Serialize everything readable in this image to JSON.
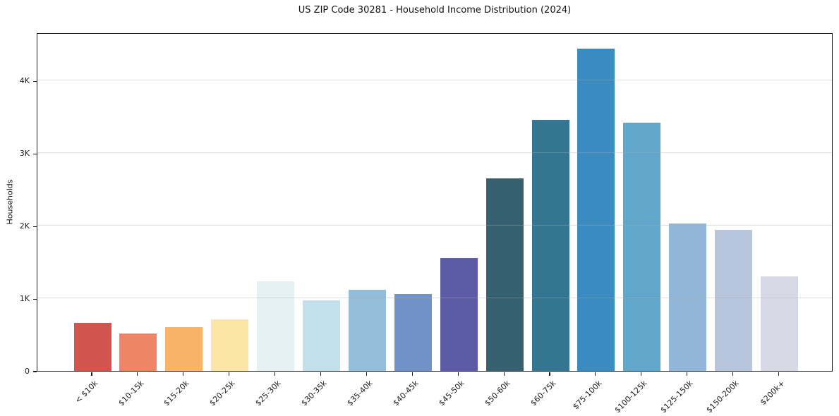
{
  "chart_data": {
    "type": "bar",
    "title": "US ZIP Code 30281 - Household Income Distribution (2024)",
    "xlabel": "",
    "ylabel": "Households",
    "categories": [
      "< $10k",
      "$10-15k",
      "$15-20k",
      "$20-25k",
      "$25-30k",
      "$30-35k",
      "$35-40k",
      "$40-45k",
      "$45-50k",
      "$50-60k",
      "$60-75k",
      "$75-100k",
      "$100-125k",
      "$125-150k",
      "$150-200k",
      "$200k+"
    ],
    "values": [
      660,
      520,
      610,
      715,
      1240,
      975,
      1120,
      1060,
      1565,
      2665,
      3475,
      4465,
      3435,
      2040,
      1950,
      1310
    ],
    "colors": [
      "#d3534d",
      "#ee8666",
      "#f8b369",
      "#fce3a6",
      "#e4f0f2",
      "#c2e0ec",
      "#93bdd9",
      "#7092c8",
      "#5c5ba6",
      "#36606f",
      "#347691",
      "#3a8bc0",
      "#60a7cb",
      "#92b6d8",
      "#b7c6dd",
      "#d8d9e7"
    ],
    "y_ticks": [
      {
        "value": 0,
        "label": "0"
      },
      {
        "value": 1000,
        "label": "1K"
      },
      {
        "value": 2000,
        "label": "2K"
      },
      {
        "value": 3000,
        "label": "3K"
      },
      {
        "value": 4000,
        "label": "4K"
      }
    ],
    "ylim": [
      0,
      4665
    ],
    "grid": "horizontal",
    "legend": "none",
    "background_color": "#ffffff",
    "axis_color": "#1a1a1a",
    "grid_color": "#e4e4e4"
  }
}
